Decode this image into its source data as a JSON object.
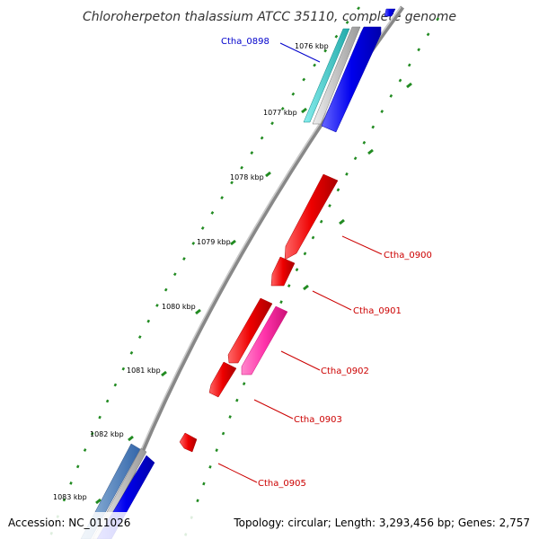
{
  "title": "Chloroherpeton thalassium ATCC 35110, complete genome",
  "footer": {
    "accession": "Accession: NC_011026",
    "summary": "Topology: circular; Length: 3,293,456 bp; Genes: 2,757"
  },
  "ticks": [
    {
      "label": "1076 kbp"
    },
    {
      "label": "1077 kbp"
    },
    {
      "label": "1078 kbp"
    },
    {
      "label": "1079 kbp"
    },
    {
      "label": "1080 kbp"
    },
    {
      "label": "1081 kbp"
    },
    {
      "label": "1082 kbp"
    },
    {
      "label": "1083 kbp"
    }
  ],
  "gene_labels": [
    {
      "name": "Ctha_0898",
      "color": "#0000cc"
    },
    {
      "name": "Ctha_0900",
      "color": "#cc0000"
    },
    {
      "name": "Ctha_0901",
      "color": "#cc0000"
    },
    {
      "name": "Ctha_0902",
      "color": "#cc0000"
    },
    {
      "name": "Ctha_0903",
      "color": "#cc0000"
    },
    {
      "name": "Ctha_0905",
      "color": "#cc0000"
    }
  ],
  "colors": {
    "forward_cds": "#0000ee",
    "reverse_cds": "#ee0000",
    "highlight_cds": "#ff33aa",
    "rna": "#33cccc",
    "backbone": "#777777",
    "tick_marks": "#228b22"
  }
}
